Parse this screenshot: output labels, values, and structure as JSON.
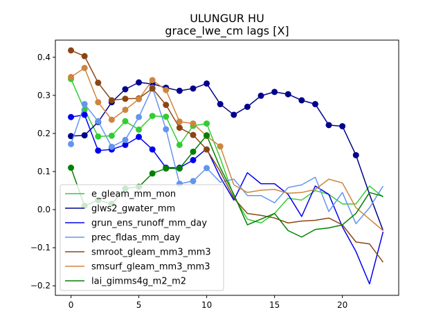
{
  "chart_data": {
    "type": "line",
    "title": "ULUNGUR HU",
    "subtitle": "grace_lwe_cm lags [X]",
    "xlabel": "",
    "ylabel": "",
    "xlim": [
      -1.15,
      24.15
    ],
    "ylim": [
      -0.225,
      0.445
    ],
    "x_ticks": [
      0,
      5,
      10,
      15,
      20
    ],
    "y_ticks": [
      -0.2,
      -0.1,
      0.0,
      0.1,
      0.2,
      0.3,
      0.4
    ],
    "y_tick_labels": [
      "−0.2",
      "−0.1",
      "0.0",
      "0.1",
      "0.2",
      "0.3",
      "0.4"
    ],
    "grid": false,
    "legend_position": "lower-left",
    "x": [
      0,
      1,
      2,
      3,
      4,
      5,
      6,
      7,
      8,
      9,
      10,
      11,
      12,
      13,
      14,
      15,
      16,
      17,
      18,
      19,
      20,
      21,
      22,
      23
    ],
    "series": [
      {
        "name": "e_gleam_mm_mon",
        "color": "#32cd32",
        "values": [
          0.343,
          0.262,
          0.192,
          0.194,
          0.232,
          0.21,
          0.246,
          0.244,
          0.17,
          0.22,
          0.226,
          0.135,
          0.035,
          -0.025,
          -0.035,
          -0.01,
          0.03,
          0.025,
          0.05,
          0.04,
          0.015,
          0.015,
          0.062,
          0.033
        ],
        "marker_count": 11
      },
      {
        "name": "glws2_gwater_mm",
        "color": "#00008b",
        "values": [
          0.193,
          0.195,
          0.23,
          0.282,
          0.316,
          0.334,
          0.33,
          0.32,
          0.312,
          0.318,
          0.331,
          0.277,
          0.249,
          0.27,
          0.299,
          0.309,
          0.303,
          0.287,
          0.277,
          0.222,
          0.219,
          0.143,
          0.04,
          -0.055
        ],
        "marker_count": 22
      },
      {
        "name": "grun_ens_runoff_mm_day",
        "color": "#0000ee",
        "values": [
          0.243,
          0.249,
          0.155,
          0.158,
          0.17,
          0.191,
          0.158,
          0.11,
          0.11,
          0.13,
          0.16,
          0.085,
          0.025,
          0.097,
          0.068,
          0.068,
          0.04,
          -0.018,
          0.062,
          0.04,
          -0.045,
          -0.11,
          -0.195,
          -0.058
        ],
        "marker_count": 10
      },
      {
        "name": "prec_fldas_mm_day",
        "color": "#6495ed",
        "values": [
          0.172,
          0.277,
          0.232,
          0.165,
          0.183,
          0.243,
          0.32,
          0.211,
          0.068,
          0.075,
          0.109,
          0.072,
          0.08,
          0.037,
          0.037,
          0.018,
          0.058,
          0.065,
          0.085,
          -0.005,
          0.045,
          -0.037,
          0.005,
          0.062
        ],
        "marker_count": 11
      },
      {
        "name": "smroot_gleam_mm3_mm3",
        "color": "#8b4513",
        "values": [
          0.418,
          0.403,
          0.333,
          0.287,
          0.291,
          0.292,
          0.318,
          0.275,
          0.215,
          0.196,
          0.158,
          0.1,
          0.03,
          -0.01,
          -0.015,
          -0.022,
          -0.035,
          -0.03,
          -0.028,
          -0.022,
          -0.04,
          -0.085,
          -0.09,
          -0.138
        ],
        "marker_count": 11
      },
      {
        "name": "smsurf_gleam_mm3_mm3",
        "color": "#cd853f",
        "values": [
          0.348,
          0.372,
          0.282,
          0.236,
          0.262,
          0.29,
          0.34,
          0.314,
          0.231,
          0.226,
          0.193,
          0.166,
          0.065,
          0.045,
          0.051,
          0.053,
          0.043,
          0.045,
          0.053,
          0.08,
          0.07,
          0.005,
          -0.025,
          -0.055
        ],
        "marker_count": 12
      },
      {
        "name": "lai_gimms4g_m2_m2",
        "color": "#008000",
        "values": [
          0.11,
          0.01,
          0.025,
          0.015,
          0.055,
          0.06,
          0.095,
          0.108,
          0.108,
          0.152,
          0.195,
          0.11,
          0.04,
          -0.04,
          -0.025,
          -0.01,
          -0.055,
          -0.072,
          -0.052,
          -0.048,
          -0.04,
          -0.01,
          0.045,
          0.035
        ],
        "marker_count": 11
      }
    ]
  }
}
